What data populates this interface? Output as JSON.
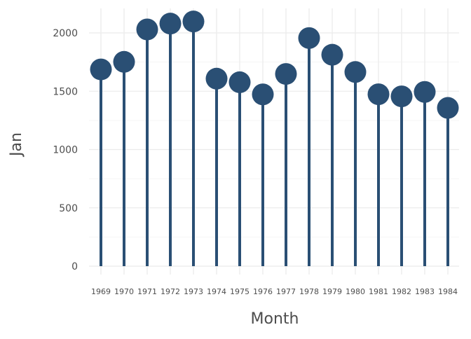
{
  "chart_data": {
    "type": "lollipop",
    "categories": [
      "1969",
      "1970",
      "1971",
      "1972",
      "1973",
      "1974",
      "1975",
      "1976",
      "1977",
      "1978",
      "1979",
      "1980",
      "1981",
      "1982",
      "1983",
      "1984"
    ],
    "values": [
      1687,
      1752,
      2030,
      2080,
      2098,
      1608,
      1577,
      1473,
      1648,
      1956,
      1813,
      1665,
      1474,
      1456,
      1494,
      1357
    ],
    "title": "",
    "xlabel": "Month",
    "ylabel": "Jan",
    "ylim": [
      0,
      2200
    ],
    "y_ticks": [
      0,
      500,
      1000,
      1500,
      2000
    ],
    "y_tick_labels": [
      "0",
      "500",
      "1000",
      "1500",
      "2000"
    ],
    "grid": true,
    "colors": {
      "series": "#2a4f74",
      "grid_major": "#ebebeb",
      "grid_minor": "#f5f5f5",
      "text": "#4d4d4d",
      "background": "#ffffff"
    }
  }
}
